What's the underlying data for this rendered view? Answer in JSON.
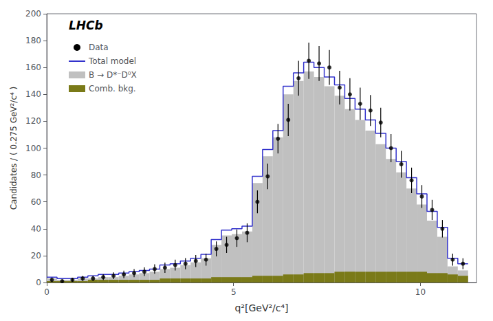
{
  "chart_data": {
    "type": "histogram",
    "xlabel": "q²[GeV²/c⁴]",
    "ylabel": "Candidates / ( 0.275 GeV²/c⁴ )",
    "annotation": "LHCb",
    "xlim": [
      0,
      11.5
    ],
    "ylim": [
      0,
      200
    ],
    "xticks": [
      0,
      5,
      10
    ],
    "yticks": [
      0,
      20,
      40,
      60,
      80,
      100,
      120,
      140,
      160,
      180,
      200
    ],
    "grid": false,
    "legend": "upper left",
    "bins": [
      0.0,
      0.275,
      0.55,
      0.825,
      1.1,
      1.375,
      1.65,
      1.925,
      2.2,
      2.475,
      2.75,
      3.025,
      3.3,
      3.575,
      3.85,
      4.125,
      4.4,
      4.675,
      4.95,
      5.225,
      5.5,
      5.775,
      6.05,
      6.325,
      6.6,
      6.875,
      7.15,
      7.425,
      7.7,
      7.975,
      8.25,
      8.525,
      8.8,
      9.075,
      9.35,
      9.625,
      9.9,
      10.175,
      10.45,
      10.725,
      11.0,
      11.275
    ],
    "series": [
      {
        "name": "Data",
        "type": "scatter",
        "color": "#000000",
        "marker": "circle",
        "x": [
          0.1375,
          0.4125,
          0.6875,
          0.9625,
          1.2375,
          1.5125,
          1.7875,
          2.0625,
          2.3375,
          2.6125,
          2.8875,
          3.1625,
          3.4375,
          3.7125,
          3.9875,
          4.2625,
          4.5375,
          4.8125,
          5.0875,
          5.3625,
          5.6375,
          5.9125,
          6.1875,
          6.4625,
          6.7375,
          7.0125,
          7.2875,
          7.5625,
          7.8375,
          8.1125,
          8.3875,
          8.6625,
          8.9375,
          9.2125,
          9.4875,
          9.7625,
          10.0375,
          10.3125,
          10.5875,
          10.8625,
          11.1375
        ],
        "values": [
          2,
          1,
          2,
          3,
          3,
          4,
          5,
          6,
          7,
          8,
          10,
          11,
          13,
          14,
          16,
          17,
          25,
          28,
          33,
          37,
          60,
          79,
          107,
          121,
          152,
          165,
          163,
          160,
          145,
          140,
          133,
          128,
          119,
          100,
          88,
          76,
          64,
          54,
          40,
          17,
          14
        ],
        "yerr": [
          1.5,
          1.2,
          1.5,
          1.8,
          2.0,
          2.2,
          2.5,
          2.8,
          3.0,
          3.2,
          3.5,
          3.8,
          4.0,
          4.2,
          4.5,
          4.5,
          5.5,
          6.0,
          6.5,
          7.0,
          8.5,
          9.5,
          11.0,
          12.0,
          13.0,
          13.5,
          13.0,
          13.0,
          12.5,
          12.0,
          12.0,
          11.5,
          11.0,
          10.5,
          10.0,
          9.5,
          8.5,
          7.5,
          6.5,
          4.5,
          4.0
        ]
      },
      {
        "name": "Total model",
        "type": "step",
        "color": "#3333cc",
        "values": [
          4,
          3,
          3,
          4,
          5,
          6,
          6,
          7,
          8,
          9,
          10,
          13,
          14,
          16,
          18,
          21,
          32,
          39,
          40,
          42,
          79,
          99,
          113,
          146,
          156,
          164,
          160,
          153,
          147,
          137,
          129,
          121,
          111,
          100,
          90,
          78,
          66,
          53,
          41,
          18,
          14
        ]
      },
      {
        "name": "B → D*⁻D⁰X",
        "type": "bar",
        "color": "#c0c0c0",
        "values": [
          3,
          2,
          2,
          3,
          3,
          4,
          4,
          5,
          6,
          7,
          8,
          10,
          11,
          13,
          15,
          18,
          28,
          35,
          36,
          38,
          74,
          94,
          108,
          140,
          150,
          157,
          153,
          146,
          139,
          129,
          121,
          113,
          103,
          92,
          82,
          70,
          58,
          46,
          34,
          12,
          9
        ]
      },
      {
        "name": "Comb. bkg.",
        "type": "bar",
        "color": "#7a7a18",
        "values": [
          1,
          1,
          1,
          1,
          2,
          2,
          2,
          2,
          2,
          2,
          2,
          3,
          3,
          3,
          3,
          3,
          4,
          4,
          4,
          4,
          5,
          5,
          5,
          6,
          6,
          7,
          7,
          7,
          8,
          8,
          8,
          8,
          8,
          8,
          8,
          8,
          8,
          7,
          7,
          6,
          5
        ]
      }
    ]
  }
}
